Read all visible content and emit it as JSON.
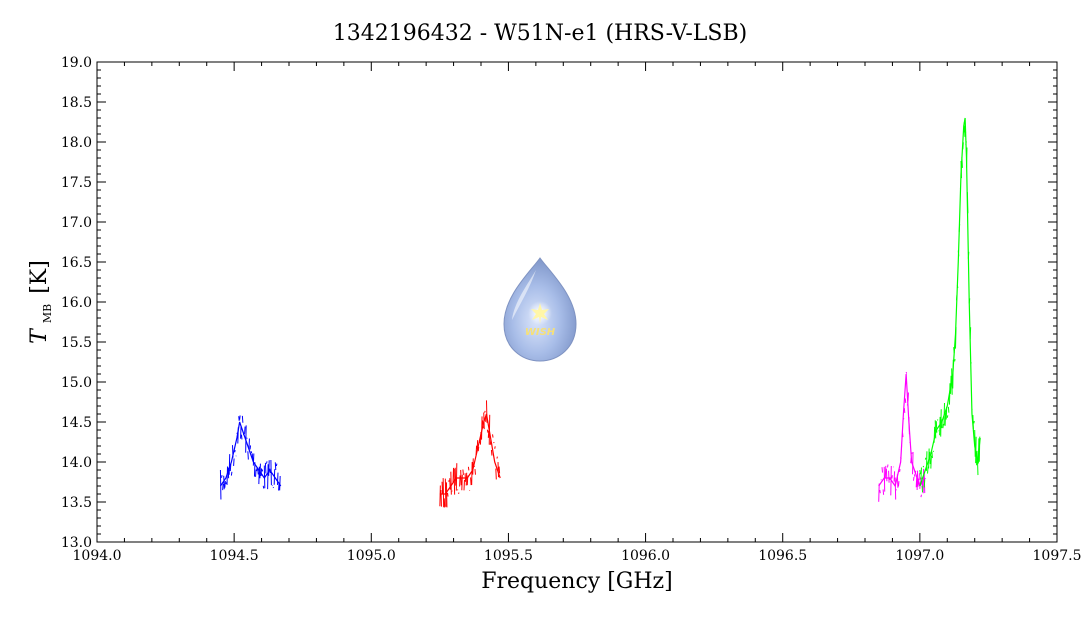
{
  "chart_data": {
    "type": "line",
    "title": "1342196432 - W51N-e1 (HRS-V-LSB)",
    "xlabel": "Frequency [GHz]",
    "ylabel_main": "T",
    "ylabel_sub": "MB",
    "ylabel_unit": "[K]",
    "xlim": [
      1094.0,
      1097.5
    ],
    "ylim": [
      13.0,
      19.0
    ],
    "x_ticks": [
      1094.0,
      1094.5,
      1095.0,
      1095.5,
      1096.0,
      1096.5,
      1097.0,
      1097.5
    ],
    "x_tick_labels": [
      "1094.0",
      "1094.5",
      "1095.0",
      "1095.5",
      "1096.0",
      "1096.5",
      "1097.0",
      "1097.5"
    ],
    "y_ticks": [
      13.0,
      13.5,
      14.0,
      14.5,
      15.0,
      15.5,
      16.0,
      16.5,
      17.0,
      17.5,
      18.0,
      18.5,
      19.0
    ],
    "y_tick_labels": [
      "13.0",
      "13.5",
      "14.0",
      "14.5",
      "15.0",
      "15.5",
      "16.0",
      "16.5",
      "17.0",
      "17.5",
      "18.0",
      "18.5",
      "19.0"
    ],
    "grid": false,
    "series": [
      {
        "color": "#0000ff",
        "x": [
          1094.45,
          1094.47,
          1094.49,
          1094.51,
          1094.52,
          1094.53,
          1094.55,
          1094.57,
          1094.59,
          1094.61,
          1094.63,
          1094.65,
          1094.67
        ],
        "y": [
          13.7,
          13.8,
          14.0,
          14.3,
          14.5,
          14.4,
          14.2,
          14.0,
          13.9,
          13.8,
          13.9,
          13.8,
          13.7
        ]
      },
      {
        "color": "#ff0000",
        "x": [
          1095.25,
          1095.27,
          1095.29,
          1095.31,
          1095.33,
          1095.35,
          1095.37,
          1095.39,
          1095.41,
          1095.42,
          1095.43,
          1095.45,
          1095.47
        ],
        "y": [
          13.6,
          13.6,
          13.7,
          13.8,
          13.8,
          13.8,
          13.9,
          14.2,
          14.5,
          14.6,
          14.4,
          14.0,
          13.8
        ]
      },
      {
        "color": "#ff00ff",
        "x": [
          1096.85,
          1096.87,
          1096.89,
          1096.91,
          1096.93,
          1096.94,
          1096.95,
          1096.96,
          1096.97,
          1096.98,
          1096.99,
          1097.0,
          1097.02
        ],
        "y": [
          13.7,
          13.8,
          13.8,
          13.7,
          14.0,
          14.6,
          15.1,
          14.5,
          14.0,
          13.9,
          13.8,
          13.7,
          13.8
        ]
      },
      {
        "color": "#00ff00",
        "x": [
          1097.0,
          1097.02,
          1097.04,
          1097.06,
          1097.08,
          1097.1,
          1097.12,
          1097.13,
          1097.14,
          1097.15,
          1097.16,
          1097.165,
          1097.17,
          1097.18,
          1097.19,
          1097.2,
          1097.21,
          1097.22
        ],
        "y": [
          13.7,
          13.9,
          14.1,
          14.4,
          14.5,
          14.7,
          15.1,
          15.6,
          16.5,
          17.6,
          18.2,
          18.3,
          17.8,
          16.0,
          14.6,
          14.2,
          14.0,
          14.3
        ]
      }
    ]
  },
  "logo": {
    "name": "wish-logo",
    "text": "WISH"
  }
}
